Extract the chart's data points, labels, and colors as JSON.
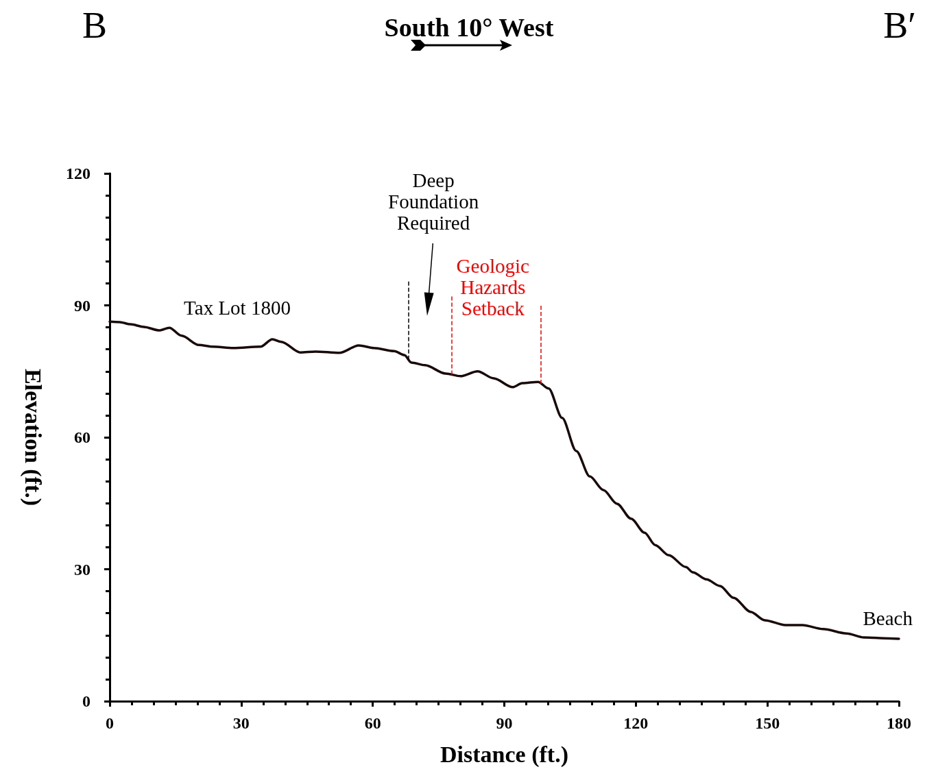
{
  "chart_data": {
    "type": "line",
    "title": "South 10° West",
    "xlabel": "Distance (ft.)",
    "ylabel": "Elevation (ft.)",
    "x": [
      0,
      2.3,
      4.7,
      7.8,
      11.3,
      13.6,
      16.4,
      20.3,
      23.5,
      28.2,
      34.4,
      37.1,
      39.1,
      43.5,
      46.9,
      52.4,
      56.8,
      60.2,
      64.9,
      67.2,
      68.8,
      71.9,
      76.6,
      80,
      83.9,
      87.6,
      91.9,
      94.1,
      97.7,
      100.1,
      103.2,
      106.4,
      109.5,
      112.6,
      115.7,
      118.9,
      122,
      124.4,
      127.5,
      131.4,
      133,
      136.1,
      139.2,
      142.3,
      146.2,
      149.4,
      154.1,
      158,
      162.7,
      168.1,
      172,
      176.7,
      180
    ],
    "series": [
      {
        "color": "#1a0a0a",
        "values": [
          86.3,
          86.2,
          85.7,
          85.1,
          84.3,
          84.9,
          83.1,
          81,
          80.6,
          80.3,
          80.6,
          82.3,
          81.7,
          79.3,
          79.5,
          79.2,
          80.9,
          80.3,
          79.6,
          78.7,
          77,
          76.4,
          74.5,
          73.9,
          75,
          73.4,
          71.4,
          72.3,
          72.6,
          71.1,
          64.4,
          56.9,
          51.1,
          48,
          44.9,
          41.5,
          38.3,
          35.5,
          33.2,
          30.5,
          29.3,
          27.7,
          26.2,
          23.5,
          20.3,
          18.4,
          17.3,
          17.3,
          16.4,
          15.4,
          14.5,
          14.3,
          14.2
        ]
      }
    ],
    "xlim": [
      0,
      180
    ],
    "xticks": [
      0,
      30,
      60,
      90,
      120,
      150,
      180
    ],
    "ylim": [
      0,
      120
    ],
    "yticks": [
      0,
      30,
      60,
      90,
      120
    ],
    "grid": false,
    "marker": "none",
    "line_style": "solid",
    "ref_lines": [
      {
        "axis": "x",
        "value": 68.2,
        "label": "Deep Foundation Required",
        "color": "#000000",
        "line_style": "dashed"
      },
      {
        "axis": "x",
        "value": 78,
        "label": "Geologic Hazards Setback",
        "color": "#ff0000",
        "line_style": "dashed"
      },
      {
        "axis": "x",
        "value": 98.4,
        "color": "#ff0000",
        "line_style": "dashed"
      }
    ],
    "annotations": [
      "B",
      "B′",
      "Tax Lot 1800",
      "Beach"
    ]
  }
}
